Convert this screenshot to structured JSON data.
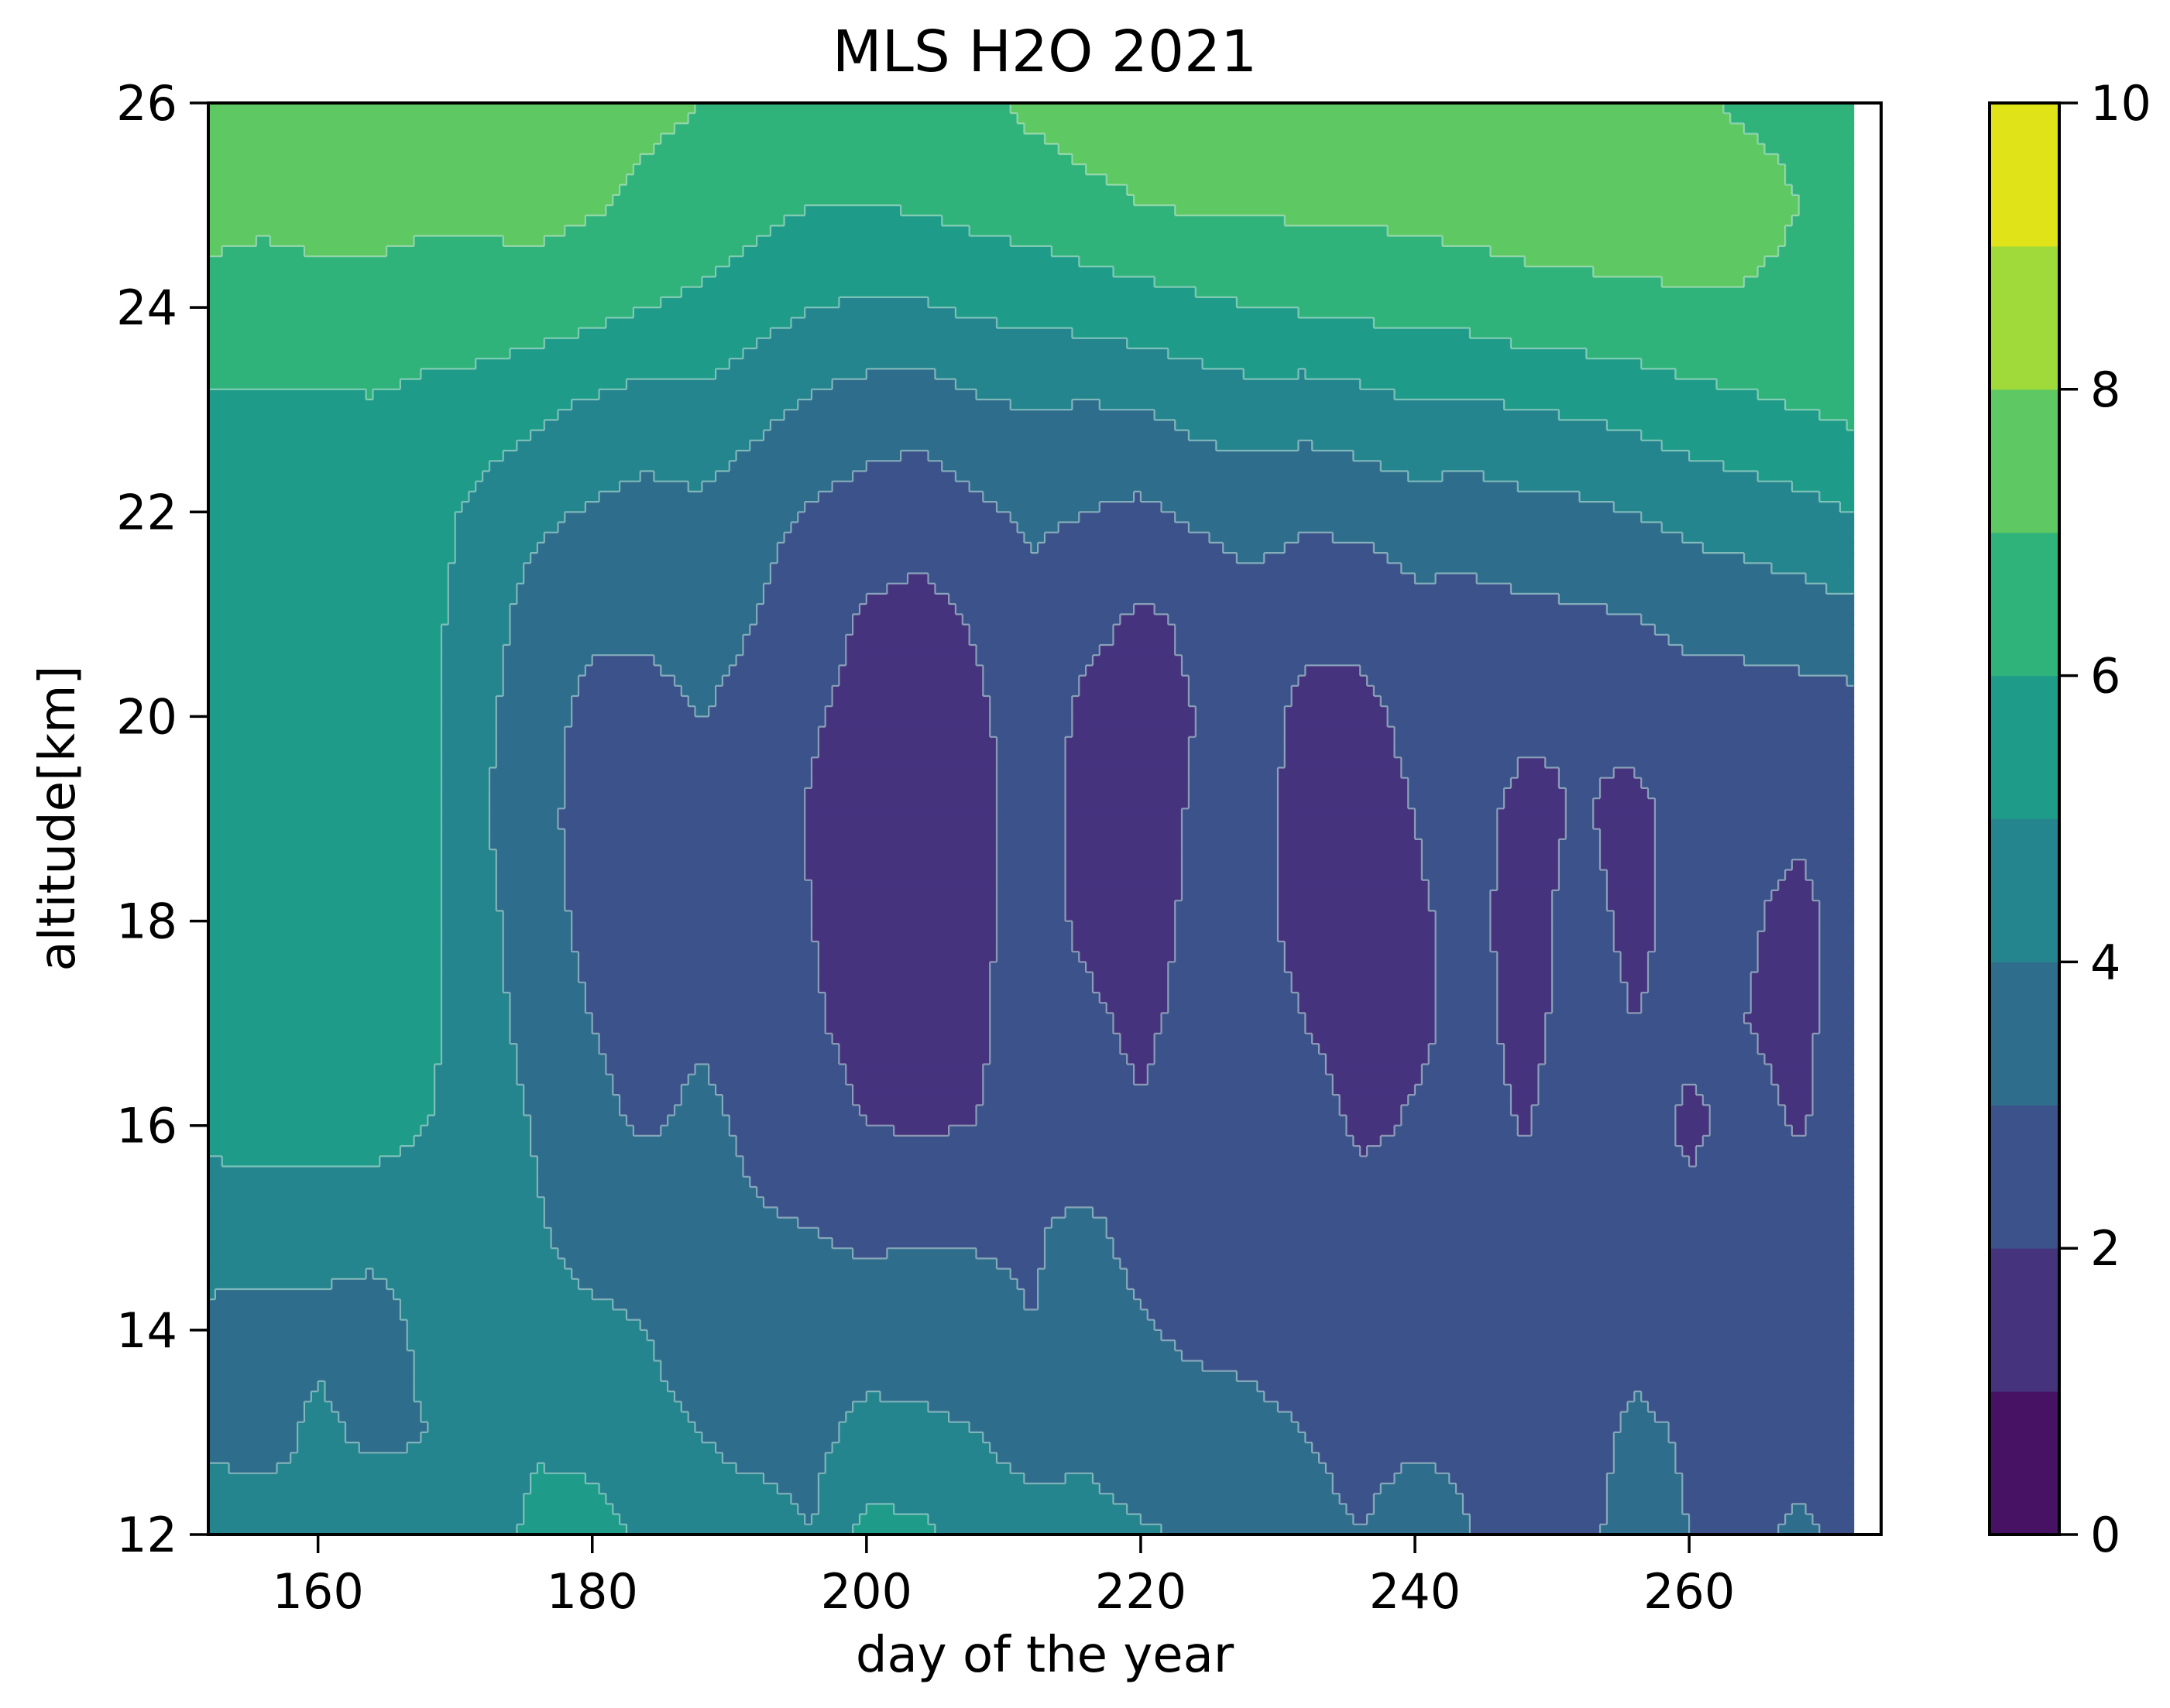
{
  "title": "MLS H2O   2021",
  "xlabel": "day of the year",
  "ylabel": "altitude[km]",
  "chart_data": {
    "type": "contourf",
    "title": "MLS H2O   2021",
    "xlabel": "day of the year",
    "ylabel": "altitude[km]",
    "xlim": [
      152,
      274
    ],
    "ylim": [
      12,
      26
    ],
    "x_ticks": [
      160,
      180,
      200,
      220,
      240,
      260
    ],
    "y_ticks": [
      12,
      14,
      16,
      18,
      20,
      22,
      24,
      26
    ],
    "colorbar": {
      "levels": [
        0,
        1,
        2,
        3,
        4,
        5,
        6,
        7,
        8,
        9,
        10
      ],
      "ticks": [
        0,
        2,
        4,
        6,
        8,
        10
      ],
      "colormap": "viridis",
      "colors": [
        "#471164",
        "#46337e",
        "#3b528b",
        "#2e6d8c",
        "#25858e",
        "#1f9c89",
        "#30b37b",
        "#5ec962",
        "#9fda3a",
        "#dfe318"
      ]
    },
    "contour_line_color": "#c8e6e0",
    "grid": false,
    "x": [
      152,
      156,
      160,
      164,
      168,
      172,
      176,
      180,
      184,
      188,
      192,
      196,
      200,
      204,
      208,
      212,
      216,
      220,
      224,
      228,
      232,
      236,
      240,
      244,
      248,
      252,
      256,
      260,
      264,
      268,
      272
    ],
    "y": [
      12,
      13,
      14,
      15,
      16,
      17,
      18,
      19,
      20,
      21,
      22,
      23,
      24,
      25,
      26
    ],
    "z": [
      [
        4.3,
        4.5,
        4.2,
        4.6,
        4.4,
        4.3,
        5.4,
        5.6,
        4.6,
        4.3,
        4.4,
        4.0,
        5.3,
        5.2,
        4.5,
        4.4,
        4.3,
        4.1,
        3.9,
        3.4,
        3.2,
        3.0,
        3.3,
        3.0,
        2.9,
        2.8,
        3.3,
        3.0,
        2.9,
        3.1,
        2.9
      ],
      [
        3.9,
        3.6,
        4.2,
        3.8,
        4.0,
        4.1,
        4.8,
        4.5,
        4.2,
        4.0,
        3.7,
        3.7,
        4.3,
        4.2,
        4.0,
        3.6,
        3.8,
        3.5,
        3.4,
        3.2,
        3.0,
        2.8,
        2.9,
        2.9,
        2.7,
        2.6,
        3.2,
        2.9,
        2.6,
        2.8,
        2.7
      ],
      [
        3.8,
        3.7,
        3.8,
        3.6,
        4.2,
        4.1,
        4.3,
        4.2,
        4.0,
        3.6,
        3.4,
        3.3,
        3.5,
        3.5,
        3.3,
        3.0,
        3.4,
        3.1,
        2.8,
        2.8,
        2.6,
        2.6,
        2.7,
        2.6,
        2.5,
        2.6,
        2.7,
        2.4,
        2.6,
        2.6,
        2.5
      ],
      [
        4.4,
        4.4,
        4.3,
        4.3,
        4.4,
        4.3,
        4.1,
        3.6,
        3.6,
        3.3,
        3.1,
        3.0,
        2.8,
        2.9,
        2.9,
        2.9,
        3.2,
        2.7,
        2.6,
        2.7,
        2.6,
        2.5,
        2.6,
        2.6,
        2.4,
        2.5,
        2.6,
        2.3,
        2.4,
        2.6,
        2.5
      ],
      [
        5.3,
        5.4,
        5.5,
        5.4,
        5.0,
        4.6,
        3.9,
        3.2,
        2.9,
        3.2,
        2.8,
        2.4,
        2.0,
        1.9,
        2.0,
        2.6,
        2.4,
        2.1,
        2.6,
        2.5,
        2.5,
        1.8,
        2.1,
        2.5,
        1.9,
        2.6,
        2.5,
        1.8,
        2.3,
        1.9,
        2.5
      ],
      [
        5.5,
        5.6,
        5.6,
        5.5,
        5.2,
        4.4,
        3.6,
        3.0,
        2.6,
        2.9,
        2.6,
        2.1,
        1.7,
        1.6,
        1.8,
        2.5,
        2.2,
        1.8,
        2.3,
        2.4,
        2.0,
        1.6,
        1.8,
        2.3,
        1.7,
        2.4,
        2.0,
        2.3,
        2.0,
        1.8,
        2.4
      ],
      [
        5.5,
        5.5,
        5.6,
        5.5,
        5.3,
        4.3,
        3.4,
        2.7,
        2.4,
        2.8,
        2.6,
        2.0,
        1.6,
        1.7,
        1.8,
        2.4,
        1.8,
        1.6,
        2.2,
        2.3,
        1.7,
        1.6,
        1.9,
        2.2,
        1.7,
        2.3,
        1.8,
        2.3,
        2.1,
        1.8,
        2.3
      ],
      [
        5.5,
        5.5,
        5.6,
        5.5,
        5.3,
        4.1,
        3.3,
        2.6,
        2.4,
        2.9,
        2.6,
        1.9,
        1.6,
        1.7,
        1.7,
        2.4,
        1.7,
        1.6,
        2.1,
        2.4,
        1.6,
        1.6,
        2.0,
        2.3,
        1.7,
        2.1,
        1.7,
        2.4,
        2.2,
        2.1,
        2.3
      ],
      [
        5.5,
        5.5,
        5.5,
        5.4,
        5.2,
        4.2,
        3.4,
        2.7,
        2.7,
        3.0,
        2.7,
        2.1,
        1.7,
        1.6,
        1.8,
        2.5,
        1.8,
        1.8,
        2.0,
        2.5,
        1.7,
        1.8,
        2.2,
        2.4,
        2.2,
        2.0,
        2.3,
        2.6,
        2.5,
        2.5,
        2.6
      ],
      [
        5.6,
        5.5,
        5.4,
        5.4,
        5.3,
        4.4,
        3.6,
        3.2,
        3.2,
        3.4,
        3.0,
        2.4,
        1.9,
        1.7,
        2.1,
        2.7,
        2.2,
        1.9,
        2.1,
        2.7,
        2.3,
        2.2,
        2.7,
        2.7,
        2.8,
        2.9,
        3.0,
        3.3,
        3.4,
        3.6,
        3.8
      ],
      [
        5.6,
        5.6,
        5.5,
        5.6,
        5.4,
        4.7,
        4.2,
        3.9,
        3.7,
        3.8,
        3.3,
        2.9,
        2.6,
        2.4,
        2.8,
        3.2,
        3.0,
        2.8,
        3.2,
        3.4,
        3.2,
        3.3,
        3.6,
        3.5,
        3.7,
        3.8,
        4.0,
        4.3,
        4.5,
        4.7,
        5.0
      ],
      [
        5.8,
        5.8,
        5.8,
        5.9,
        5.8,
        5.5,
        5.2,
        4.8,
        4.5,
        4.7,
        4.3,
        3.8,
        3.5,
        3.4,
        3.8,
        4.0,
        3.9,
        4.0,
        4.3,
        4.5,
        4.4,
        4.6,
        4.9,
        4.8,
        5.0,
        5.1,
        5.3,
        5.6,
        5.8,
        6.0,
        6.2
      ],
      [
        6.7,
        6.6,
        6.7,
        6.6,
        6.3,
        6.6,
        6.5,
        6.3,
        6.0,
        5.8,
        5.4,
        5.0,
        4.9,
        4.9,
        5.2,
        5.2,
        5.4,
        5.6,
        5.8,
        6.0,
        6.1,
        6.2,
        6.3,
        6.4,
        6.6,
        6.7,
        6.8,
        6.9,
        6.9,
        6.8,
        6.7
      ],
      [
        7.3,
        7.2,
        7.3,
        7.4,
        7.3,
        7.2,
        7.3,
        7.1,
        6.8,
        6.6,
        6.3,
        6.0,
        6.0,
        6.1,
        6.3,
        6.5,
        6.8,
        7.0,
        7.1,
        7.1,
        7.2,
        7.2,
        7.3,
        7.4,
        7.5,
        7.5,
        7.5,
        7.4,
        7.3,
        7.0,
        6.6
      ],
      [
        7.3,
        7.4,
        7.2,
        7.5,
        7.3,
        7.4,
        7.2,
        7.3,
        7.2,
        7.0,
        6.9,
        6.7,
        6.5,
        6.6,
        6.8,
        7.2,
        7.4,
        7.3,
        7.4,
        7.3,
        7.4,
        7.3,
        7.4,
        7.3,
        7.3,
        7.4,
        7.2,
        7.1,
        6.9,
        6.8,
        6.6
      ]
    ]
  }
}
